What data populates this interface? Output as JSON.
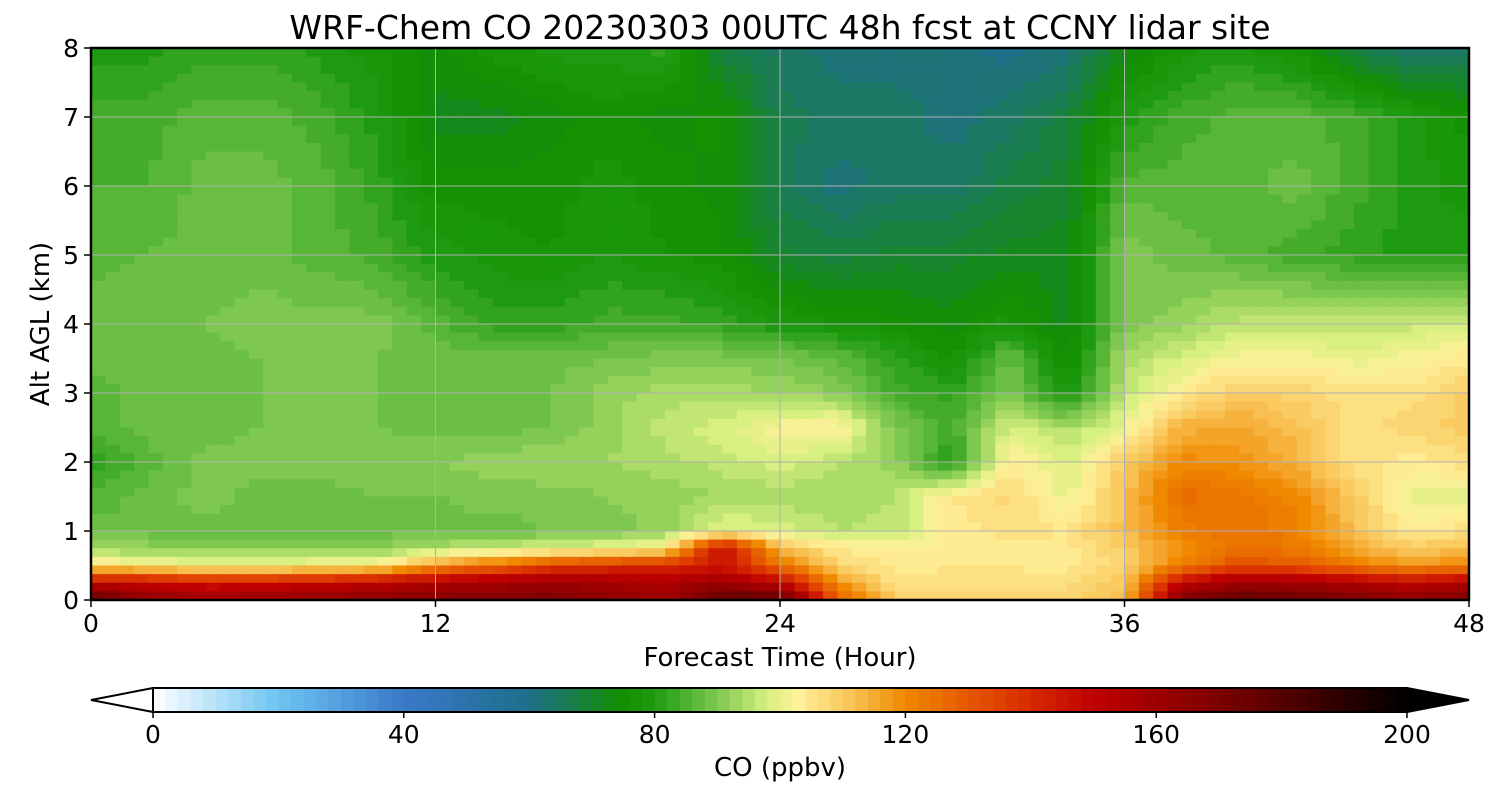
{
  "chart_data": {
    "type": "heatmap",
    "title": "WRF-Chem CO  20230303 00UTC 48h fcst at CCNY lidar site",
    "xlabel": "Forecast Time (Hour)",
    "ylabel": "Alt AGL (km)",
    "xlim": [
      0,
      48
    ],
    "ylim": [
      0,
      8
    ],
    "xticks": [
      0,
      12,
      24,
      36,
      48
    ],
    "yticks": [
      0,
      1,
      2,
      3,
      4,
      5,
      6,
      7,
      8
    ],
    "grid": true,
    "colorbar": {
      "label": "CO  (ppbv)",
      "range": [
        0,
        200
      ],
      "ticks": [
        0,
        40,
        80,
        120,
        160,
        200
      ],
      "extend": "both",
      "colors": [
        {
          "v": 0,
          "c": "#ffffff"
        },
        {
          "v": 20,
          "c": "#6ec4f2"
        },
        {
          "v": 40,
          "c": "#3a78c8"
        },
        {
          "v": 60,
          "c": "#1f6f8a"
        },
        {
          "v": 75,
          "c": "#129000"
        },
        {
          "v": 80,
          "c": "#1e9a10"
        },
        {
          "v": 90,
          "c": "#7ec850"
        },
        {
          "v": 98,
          "c": "#d8f080"
        },
        {
          "v": 103,
          "c": "#fff09a"
        },
        {
          "v": 112,
          "c": "#f8c050"
        },
        {
          "v": 120,
          "c": "#f08800"
        },
        {
          "v": 135,
          "c": "#e04000"
        },
        {
          "v": 150,
          "c": "#c00000"
        },
        {
          "v": 175,
          "c": "#6a0000"
        },
        {
          "v": 200,
          "c": "#000000"
        }
      ]
    },
    "x": [
      0,
      2,
      4,
      6,
      8,
      10,
      12,
      14,
      16,
      18,
      20,
      22,
      24,
      26,
      28,
      30,
      32,
      34,
      36,
      38,
      40,
      42,
      44,
      46,
      48
    ],
    "y": [
      0,
      0.25,
      0.5,
      0.75,
      1,
      1.5,
      2,
      2.5,
      3,
      3.5,
      4,
      5,
      6,
      7,
      8
    ],
    "z": [
      [
        178,
        165,
        160,
        162,
        164,
        166,
        168,
        168,
        170,
        165,
        160,
        178,
        180,
        130,
        110,
        108,
        108,
        108,
        112,
        170,
        178,
        176,
        170,
        165,
        170
      ],
      [
        150,
        148,
        145,
        146,
        148,
        150,
        155,
        158,
        160,
        158,
        155,
        160,
        150,
        118,
        106,
        106,
        106,
        106,
        110,
        150,
        160,
        158,
        155,
        150,
        155
      ],
      [
        105,
        103,
        100,
        101,
        102,
        104,
        118,
        125,
        135,
        138,
        140,
        145,
        125,
        108,
        104,
        105,
        105,
        104,
        108,
        122,
        132,
        130,
        122,
        118,
        120
      ],
      [
        92,
        92,
        91,
        91,
        91,
        91,
        94,
        96,
        98,
        100,
        104,
        150,
        112,
        105,
        103,
        104,
        104,
        104,
        110,
        118,
        125,
        122,
        115,
        110,
        112
      ],
      [
        88,
        88,
        88,
        87,
        88,
        88,
        88,
        88,
        89,
        90,
        92,
        100,
        98,
        95,
        96,
        104,
        106,
        105,
        112,
        122,
        125,
        122,
        112,
        104,
        106
      ],
      [
        85,
        88,
        90,
        88,
        88,
        89,
        89,
        90,
        90,
        91,
        92,
        93,
        94,
        93,
        95,
        105,
        108,
        100,
        112,
        126,
        124,
        120,
        110,
        100,
        100
      ],
      [
        82,
        86,
        90,
        90,
        90,
        91,
        91,
        92,
        93,
        93,
        94,
        96,
        98,
        95,
        92,
        80,
        104,
        98,
        110,
        120,
        118,
        114,
        106,
        104,
        106
      ],
      [
        86,
        88,
        88,
        89,
        89,
        89,
        88,
        88,
        89,
        92,
        96,
        98,
        102,
        104,
        90,
        84,
        98,
        94,
        100,
        114,
        116,
        112,
        106,
        108,
        110
      ],
      [
        86,
        88,
        88,
        89,
        89,
        89,
        89,
        89,
        89,
        92,
        94,
        94,
        93,
        91,
        84,
        82,
        90,
        78,
        96,
        104,
        110,
        108,
        106,
        106,
        110
      ],
      [
        88,
        88,
        88,
        89,
        89,
        89,
        88,
        88,
        88,
        89,
        90,
        90,
        89,
        87,
        82,
        76,
        88,
        74,
        94,
        98,
        102,
        102,
        100,
        102,
        104
      ],
      [
        88,
        89,
        89,
        90,
        90,
        90,
        86,
        82,
        82,
        84,
        84,
        82,
        79,
        77,
        76,
        74,
        78,
        72,
        90,
        92,
        96,
        96,
        96,
        96,
        98
      ],
      [
        86,
        87,
        88,
        88,
        86,
        84,
        80,
        78,
        77,
        79,
        77,
        76,
        70,
        68,
        70,
        70,
        72,
        72,
        90,
        88,
        86,
        84,
        82,
        80,
        80
      ],
      [
        85,
        85,
        88,
        88,
        86,
        82,
        76,
        76,
        76,
        78,
        76,
        74,
        66,
        62,
        64,
        64,
        68,
        70,
        86,
        86,
        86,
        88,
        84,
        80,
        78
      ],
      [
        84,
        84,
        86,
        86,
        84,
        80,
        72,
        72,
        74,
        76,
        74,
        76,
        66,
        64,
        64,
        62,
        64,
        68,
        80,
        84,
        86,
        86,
        84,
        80,
        76
      ],
      [
        80,
        80,
        82,
        82,
        80,
        78,
        74,
        78,
        80,
        80,
        82,
        68,
        64,
        62,
        62,
        62,
        60,
        62,
        72,
        78,
        80,
        76,
        68,
        62,
        64
      ]
    ]
  }
}
